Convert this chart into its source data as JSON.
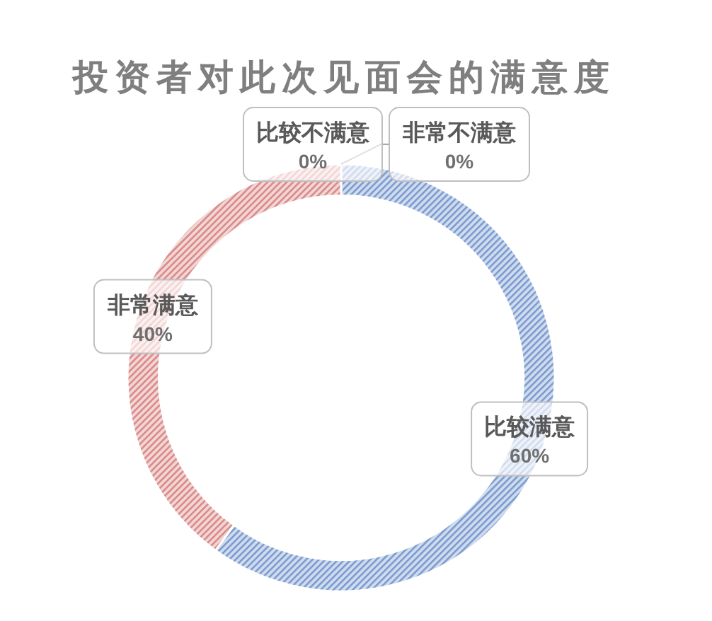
{
  "chart_data": {
    "type": "donut",
    "title": "投资者对此次见面会的满意度",
    "categories": [
      "比较满意",
      "非常满意",
      "比较不满意",
      "非常不满意"
    ],
    "values": [
      60,
      40,
      0,
      0
    ],
    "value_labels": [
      "60%",
      "40%",
      "0%",
      "0%"
    ],
    "colors": [
      "#7b9bd0",
      "#d98a88",
      null,
      null
    ]
  }
}
